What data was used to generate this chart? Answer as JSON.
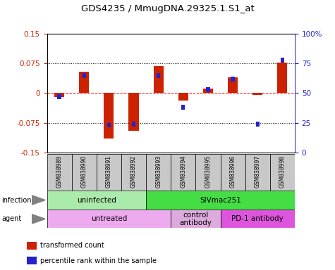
{
  "title": "GDS4235 / MmugDNA.29325.1.S1_at",
  "samples": [
    "GSM838989",
    "GSM838990",
    "GSM838991",
    "GSM838992",
    "GSM838993",
    "GSM838994",
    "GSM838995",
    "GSM838996",
    "GSM838997",
    "GSM838998"
  ],
  "red_values": [
    -0.01,
    0.055,
    -0.115,
    -0.095,
    0.068,
    -0.018,
    0.012,
    0.04,
    -0.005,
    0.077
  ],
  "blue_values": [
    47,
    65,
    23,
    24,
    65,
    38,
    53,
    62,
    24,
    78
  ],
  "ylim": [
    -0.15,
    0.15
  ],
  "yticks_left": [
    -0.15,
    -0.075,
    0,
    0.075,
    0.15
  ],
  "yticks_right": [
    0,
    25,
    50,
    75,
    100
  ],
  "infection_groups": [
    {
      "label": "uninfected",
      "start": 0,
      "end": 4,
      "color": "#aaeaaa"
    },
    {
      "label": "SIVmac251",
      "start": 4,
      "end": 10,
      "color": "#44dd44"
    }
  ],
  "agent_groups": [
    {
      "label": "untreated",
      "start": 0,
      "end": 5,
      "color": "#eeaaee"
    },
    {
      "label": "control\nantibody",
      "start": 5,
      "end": 7,
      "color": "#ddaadd"
    },
    {
      "label": "PD-1 antibody",
      "start": 7,
      "end": 10,
      "color": "#dd55dd"
    }
  ],
  "legend_items": [
    {
      "label": "transformed count",
      "color": "#cc2200"
    },
    {
      "label": "percentile rank within the sample",
      "color": "#2222cc"
    }
  ],
  "red_color": "#cc2200",
  "blue_color": "#2222cc",
  "left_axis_color": "#cc2200",
  "right_axis_color": "#2222cc",
  "background_color": "#ffffff",
  "red_bar_width": 0.4,
  "blue_bar_width": 0.15,
  "blue_bar_height": 0.012
}
